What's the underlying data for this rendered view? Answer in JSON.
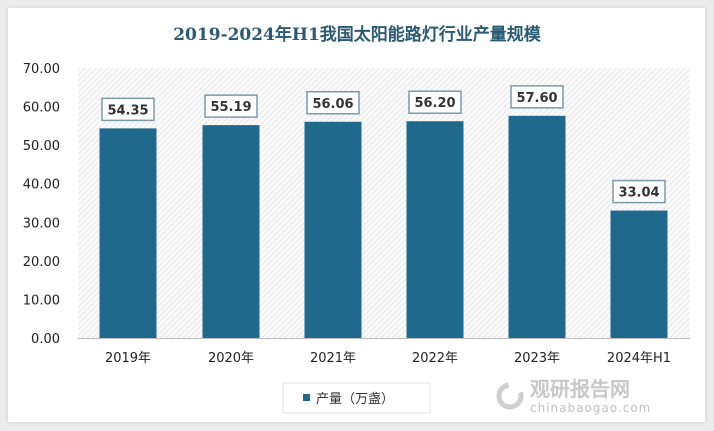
{
  "chart_data": {
    "type": "bar",
    "title": "2019-2024年H1我国太阳能路灯行业产量规模",
    "categories": [
      "2019年",
      "2020年",
      "2021年",
      "2022年",
      "2023年",
      "2024年H1"
    ],
    "series": [
      {
        "name": "产量（万盏）",
        "values": [
          54.35,
          55.19,
          56.06,
          56.2,
          57.6,
          33.04
        ]
      }
    ],
    "value_labels": [
      "54.35",
      "55.19",
      "56.06",
      "56.20",
      "57.60",
      "33.04"
    ],
    "yticks": [
      "0.00",
      "10.00",
      "20.00",
      "30.00",
      "40.00",
      "50.00",
      "60.00",
      "70.00"
    ],
    "ylim": [
      0,
      70
    ],
    "grid": false,
    "legend": "bottom",
    "bar_color": "#1f6a8c",
    "title_color": "#2a5a74"
  },
  "watermark": {
    "brand": "观研报告网",
    "url": "chinabaogao.com"
  }
}
